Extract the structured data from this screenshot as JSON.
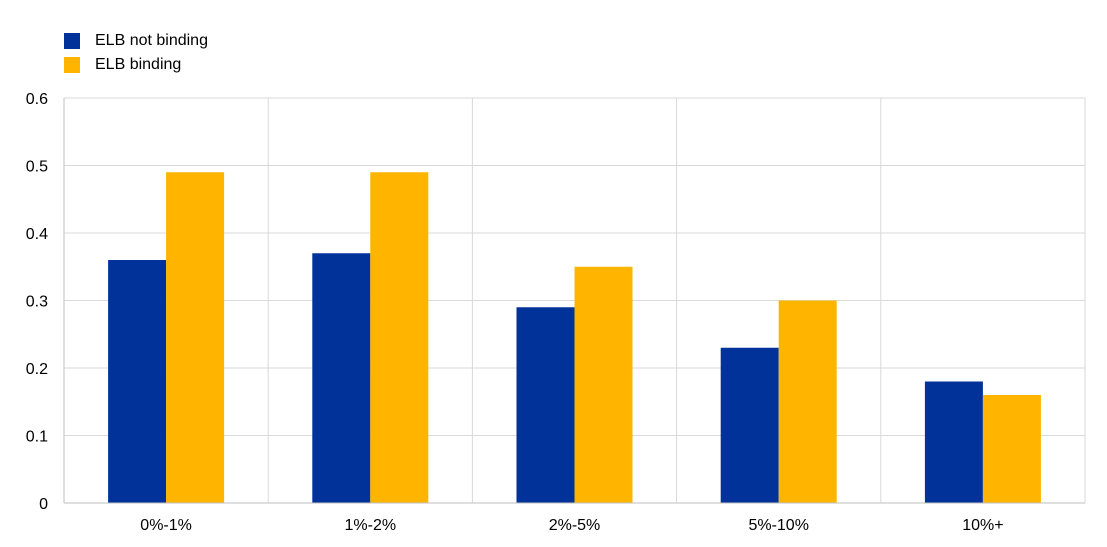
{
  "chart_data": {
    "type": "bar",
    "categories": [
      "0%-1%",
      "1%-2%",
      "2%-5%",
      "5%-10%",
      "10%+"
    ],
    "series": [
      {
        "name": "ELB not binding",
        "color": "#003299",
        "values": [
          0.36,
          0.37,
          0.29,
          0.23,
          0.18
        ]
      },
      {
        "name": "ELB binding",
        "color": "#FFB400",
        "values": [
          0.49,
          0.49,
          0.35,
          0.3,
          0.16
        ]
      }
    ],
    "ylim": [
      0,
      0.6
    ],
    "yticks": [
      "0",
      "0.1",
      "0.2",
      "0.3",
      "0.4",
      "0.5",
      "0.6"
    ],
    "grid": true,
    "legend_position": "top-left"
  }
}
